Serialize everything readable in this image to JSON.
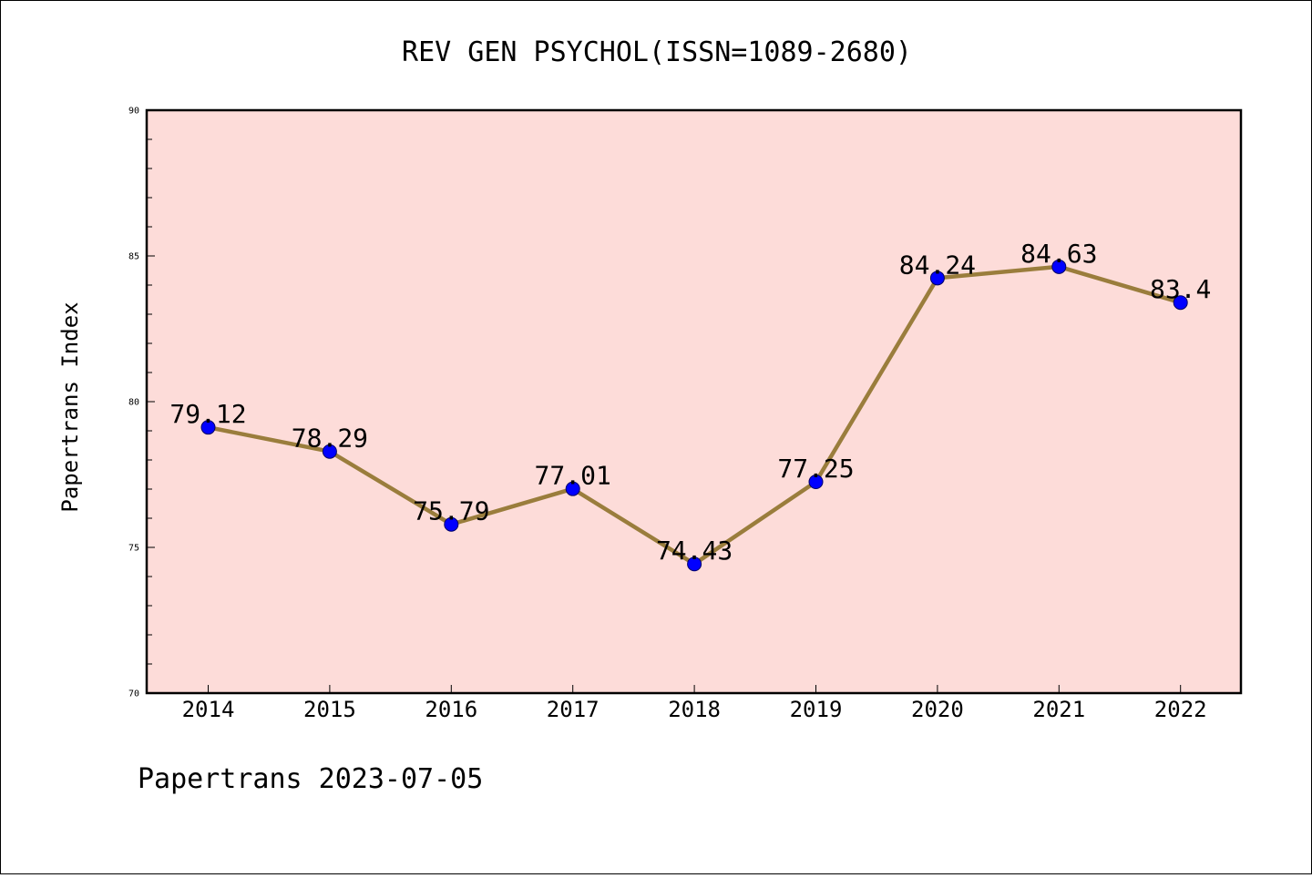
{
  "chart_data": {
    "type": "line",
    "title": "REV GEN PSYCHOL(ISSN=1089-2680)",
    "xlabel": "",
    "ylabel": "Papertrans Index",
    "categories": [
      "2014",
      "2015",
      "2016",
      "2017",
      "2018",
      "2019",
      "2020",
      "2021",
      "2022"
    ],
    "series": [
      {
        "values": [
          79.12,
          78.29,
          75.79,
          77.01,
          74.43,
          77.25,
          84.24,
          84.63,
          83.4
        ],
        "labels": [
          "79.12",
          "78.29",
          "75.79",
          "77.01",
          "74.43",
          "77.25",
          "84.24",
          "84.63",
          "83.4"
        ]
      }
    ],
    "ylim": [
      70,
      90
    ],
    "yticks": [
      "70",
      "75",
      "80",
      "85",
      "90"
    ],
    "grid": false,
    "colors": {
      "plot_background": "#fddcd9",
      "line": "#9a7d3c",
      "marker": "#0000ff"
    }
  },
  "footer": {
    "caption": "Papertrans 2023-07-05"
  }
}
